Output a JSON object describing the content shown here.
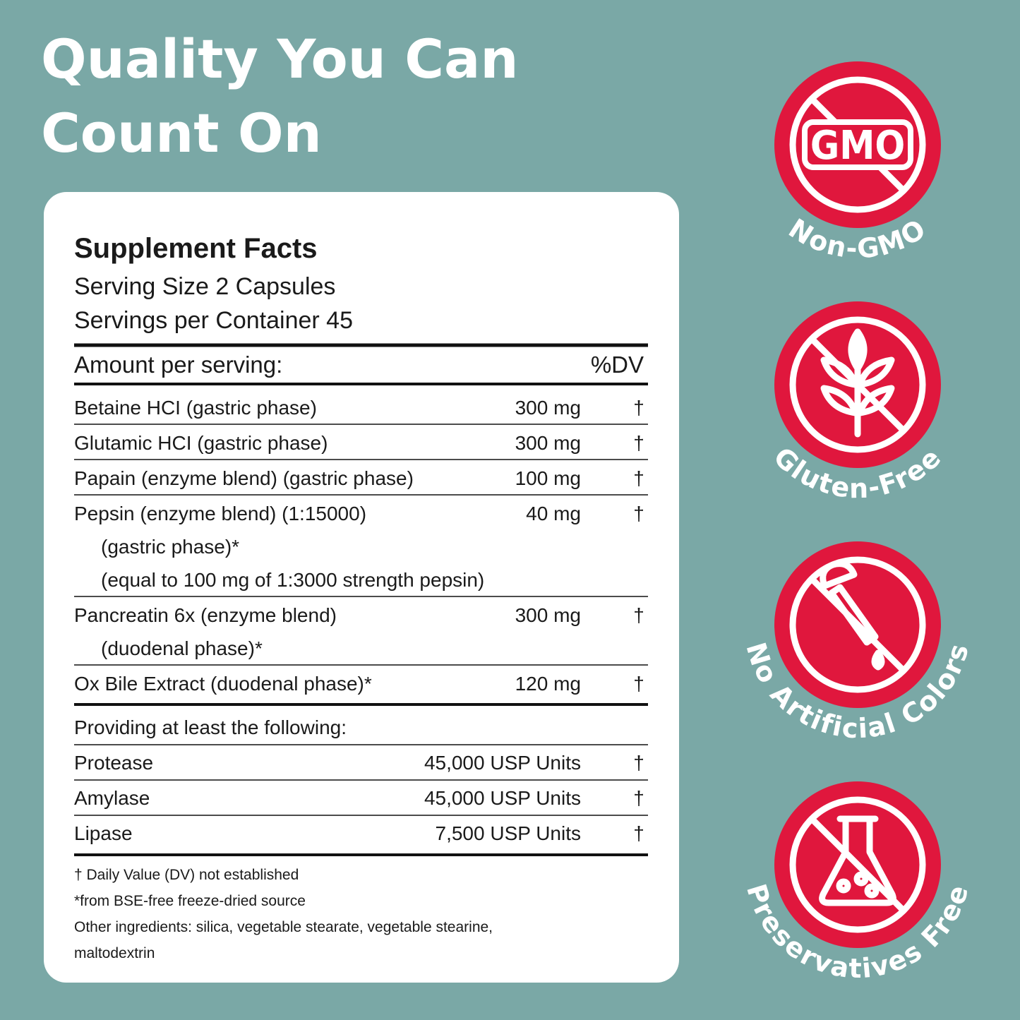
{
  "headline": {
    "lines": [
      "Quality You Can",
      "Count On"
    ]
  },
  "facts": {
    "title": "Supplement Facts",
    "serving_size": "Serving Size 2 Capsules",
    "servings_per_container": "Servings per Container 45",
    "header_amount": "Amount per serving:",
    "header_dv": "%DV",
    "rows": [
      {
        "lines": [
          "Betaine HCI (gastric phase)"
        ],
        "amount": "300 mg",
        "dv": "†"
      },
      {
        "lines": [
          "Glutamic HCI (gastric phase)"
        ],
        "amount": "300 mg",
        "dv": "†"
      },
      {
        "lines": [
          "Papain (enzyme blend) (gastric phase)"
        ],
        "amount": "100 mg",
        "dv": "†"
      },
      {
        "lines": [
          "Pepsin (enzyme blend) (1:15000)",
          "(gastric phase)*",
          "(equal to 100 mg of 1:3000 strength pepsin)"
        ],
        "amount": "40 mg",
        "dv": "†"
      },
      {
        "lines": [
          "Pancreatin 6x (enzyme blend)",
          "(duodenal phase)*"
        ],
        "amount": "300 mg",
        "dv": "†"
      },
      {
        "lines": [
          "Ox Bile Extract (duodenal phase)*"
        ],
        "amount": "120 mg",
        "dv": "†"
      }
    ],
    "providing": "Providing at least the following:",
    "enzymes": [
      {
        "name": "Protease",
        "amount": "45,000 USP Units",
        "dv": "†"
      },
      {
        "name": "Amylase",
        "amount": "45,000 USP Units",
        "dv": "†"
      },
      {
        "name": "Lipase",
        "amount": "7,500 USP Units",
        "dv": "†"
      }
    ],
    "footnotes": [
      "† Daily Value (DV) not established",
      "*from BSE-free freeze-dried source",
      "Other ingredients: silica, vegetable stearate, vegetable stearine,",
      "maltodextrin"
    ]
  },
  "badges": [
    {
      "icon_text": "GMO",
      "label": "Non-GMO"
    },
    {
      "label": "Gluten-Free"
    },
    {
      "label": "No Artificial Colors"
    },
    {
      "label": "Preservatives Free"
    }
  ]
}
